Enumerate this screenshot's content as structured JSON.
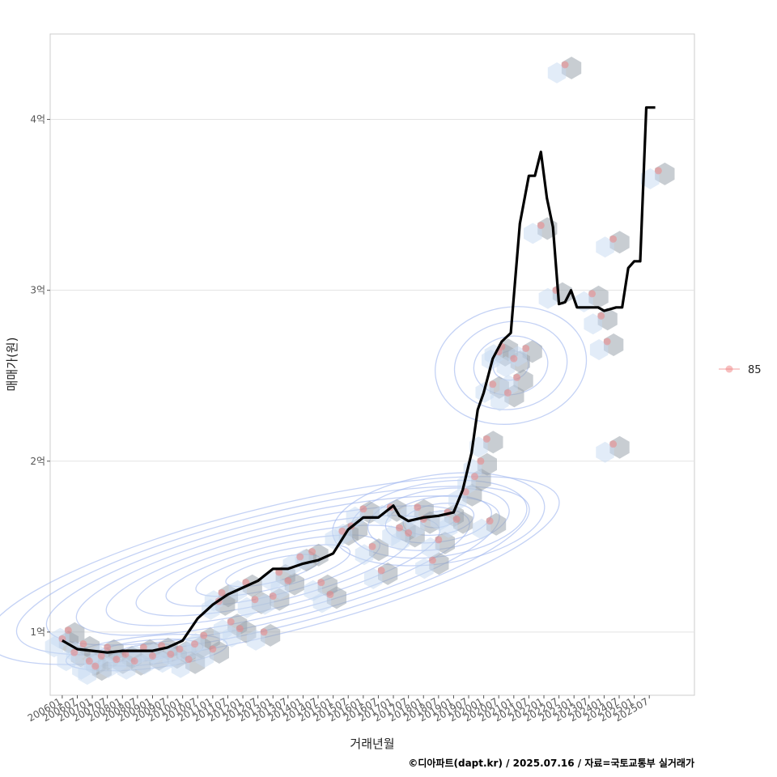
{
  "chart_data": {
    "type": "scatter",
    "xlabel": "거래년월",
    "ylabel": "매매가(원)",
    "caption": "©디아파트(dapt.kr) / 2025.07.16 / 자료=국토교통부 실거래가",
    "x_tick_labels": [
      "200601",
      "200607",
      "200701",
      "200707",
      "200801",
      "200807",
      "200901",
      "200907",
      "201001",
      "201007",
      "201101",
      "201107",
      "201201",
      "201207",
      "201301",
      "201307",
      "201401",
      "201407",
      "201501",
      "201507",
      "201601",
      "201607",
      "201701",
      "201707",
      "201801",
      "201807",
      "201901",
      "201907",
      "202001",
      "202007",
      "202101",
      "202107",
      "202201",
      "202207",
      "202301",
      "202307",
      "202401",
      "202407",
      "202501",
      "202507"
    ],
    "y_ticks": [
      {
        "value": 10000,
        "label": "1억"
      },
      {
        "value": 20000,
        "label": "2억"
      },
      {
        "value": 30000,
        "label": "3억"
      },
      {
        "value": 40000,
        "label": "4억"
      }
    ],
    "xlim": [
      2005.6,
      2027.0
    ],
    "ylim": [
      6300,
      45000
    ],
    "grid": true,
    "legend": {
      "position": "right",
      "entries": [
        {
          "label": "85",
          "color": "#f08080"
        }
      ]
    },
    "colors": {
      "points": "#f08080",
      "line": "#000000",
      "hex": "#9aa4ad",
      "hex_light": "#c5daf2",
      "contour": "#9db4ee"
    },
    "series": [
      {
        "kind": "moving_average",
        "x": [
          2006.0,
          2006.5,
          2007.0,
          2007.5,
          2008.0,
          2008.5,
          2009.0,
          2009.5,
          2010.0,
          2010.5,
          2011.0,
          2011.5,
          2012.0,
          2012.5,
          2013.0,
          2013.5,
          2014.0,
          2014.5,
          2015.0,
          2015.5,
          2016.0,
          2016.5,
          2017.0,
          2017.2,
          2017.5,
          2018.0,
          2018.5,
          2019.0,
          2019.3,
          2019.6,
          2019.8,
          2020.0,
          2020.3,
          2020.6,
          2020.9,
          2021.2,
          2021.5,
          2021.7,
          2021.9,
          2022.1,
          2022.3,
          2022.5,
          2022.7,
          2022.9,
          2023.1,
          2023.4,
          2023.6,
          2023.8,
          2024.0,
          2024.2,
          2024.4,
          2024.6,
          2024.8,
          2025.0,
          2025.2,
          2025.4,
          2025.7
        ],
        "y": [
          9500,
          9000,
          8900,
          8800,
          8900,
          8900,
          8900,
          9100,
          9500,
          10800,
          11600,
          12200,
          12600,
          13000,
          13700,
          13700,
          14000,
          14200,
          14600,
          16000,
          16700,
          16700,
          17400,
          16800,
          16500,
          16700,
          16800,
          17000,
          18300,
          20500,
          23000,
          24000,
          26000,
          27000,
          27500,
          33900,
          36700,
          36700,
          38100,
          35400,
          33700,
          29200,
          29300,
          30000,
          29000,
          29000,
          29000,
          29000,
          28800,
          28900,
          29000,
          29000,
          31300,
          31700,
          31700,
          40700,
          40700
        ]
      },
      {
        "kind": "transactions",
        "points": [
          {
            "x": 2006.0,
            "y": 9600
          },
          {
            "x": 2006.2,
            "y": 10100
          },
          {
            "x": 2006.4,
            "y": 8800
          },
          {
            "x": 2006.7,
            "y": 9300
          },
          {
            "x": 2006.9,
            "y": 8300
          },
          {
            "x": 2007.1,
            "y": 8000
          },
          {
            "x": 2007.3,
            "y": 8600
          },
          {
            "x": 2007.5,
            "y": 9100
          },
          {
            "x": 2007.8,
            "y": 8400
          },
          {
            "x": 2008.1,
            "y": 8700
          },
          {
            "x": 2008.4,
            "y": 8300
          },
          {
            "x": 2008.7,
            "y": 9100
          },
          {
            "x": 2009.0,
            "y": 8600
          },
          {
            "x": 2009.3,
            "y": 9200
          },
          {
            "x": 2009.6,
            "y": 8700
          },
          {
            "x": 2009.9,
            "y": 9000
          },
          {
            "x": 2010.2,
            "y": 8400
          },
          {
            "x": 2010.4,
            "y": 9300
          },
          {
            "x": 2010.7,
            "y": 9800
          },
          {
            "x": 2011.0,
            "y": 9000
          },
          {
            "x": 2011.2,
            "y": 11800
          },
          {
            "x": 2011.3,
            "y": 12300
          },
          {
            "x": 2011.6,
            "y": 10600
          },
          {
            "x": 2011.9,
            "y": 10200
          },
          {
            "x": 2012.1,
            "y": 12900
          },
          {
            "x": 2012.4,
            "y": 11900
          },
          {
            "x": 2012.7,
            "y": 10000
          },
          {
            "x": 2013.0,
            "y": 12100
          },
          {
            "x": 2013.2,
            "y": 13500
          },
          {
            "x": 2013.5,
            "y": 13000
          },
          {
            "x": 2013.9,
            "y": 14400
          },
          {
            "x": 2014.3,
            "y": 14700
          },
          {
            "x": 2014.6,
            "y": 12900
          },
          {
            "x": 2014.9,
            "y": 12200
          },
          {
            "x": 2015.3,
            "y": 15900
          },
          {
            "x": 2015.6,
            "y": 16200
          },
          {
            "x": 2016.0,
            "y": 17200
          },
          {
            "x": 2016.3,
            "y": 15000
          },
          {
            "x": 2016.6,
            "y": 13600
          },
          {
            "x": 2016.9,
            "y": 17300
          },
          {
            "x": 2017.2,
            "y": 16100
          },
          {
            "x": 2017.5,
            "y": 15800
          },
          {
            "x": 2017.8,
            "y": 17300
          },
          {
            "x": 2018.0,
            "y": 16600
          },
          {
            "x": 2018.3,
            "y": 14200
          },
          {
            "x": 2018.5,
            "y": 15400
          },
          {
            "x": 2018.8,
            "y": 17000
          },
          {
            "x": 2019.1,
            "y": 16600
          },
          {
            "x": 2019.4,
            "y": 18200
          },
          {
            "x": 2019.7,
            "y": 19100
          },
          {
            "x": 2019.9,
            "y": 20000
          },
          {
            "x": 2020.1,
            "y": 21300
          },
          {
            "x": 2020.2,
            "y": 16500
          },
          {
            "x": 2020.3,
            "y": 24500
          },
          {
            "x": 2020.5,
            "y": 26400
          },
          {
            "x": 2020.6,
            "y": 26700
          },
          {
            "x": 2020.8,
            "y": 24000
          },
          {
            "x": 2021.0,
            "y": 26000
          },
          {
            "x": 2021.1,
            "y": 24900
          },
          {
            "x": 2021.4,
            "y": 26600
          },
          {
            "x": 2021.9,
            "y": 33800
          },
          {
            "x": 2022.4,
            "y": 30000
          },
          {
            "x": 2022.7,
            "y": 43200
          },
          {
            "x": 2023.6,
            "y": 29800
          },
          {
            "x": 2023.9,
            "y": 28500
          },
          {
            "x": 2024.1,
            "y": 27000
          },
          {
            "x": 2024.3,
            "y": 33000
          },
          {
            "x": 2024.3,
            "y": 21000
          },
          {
            "x": 2025.8,
            "y": 37000
          }
        ]
      }
    ]
  }
}
